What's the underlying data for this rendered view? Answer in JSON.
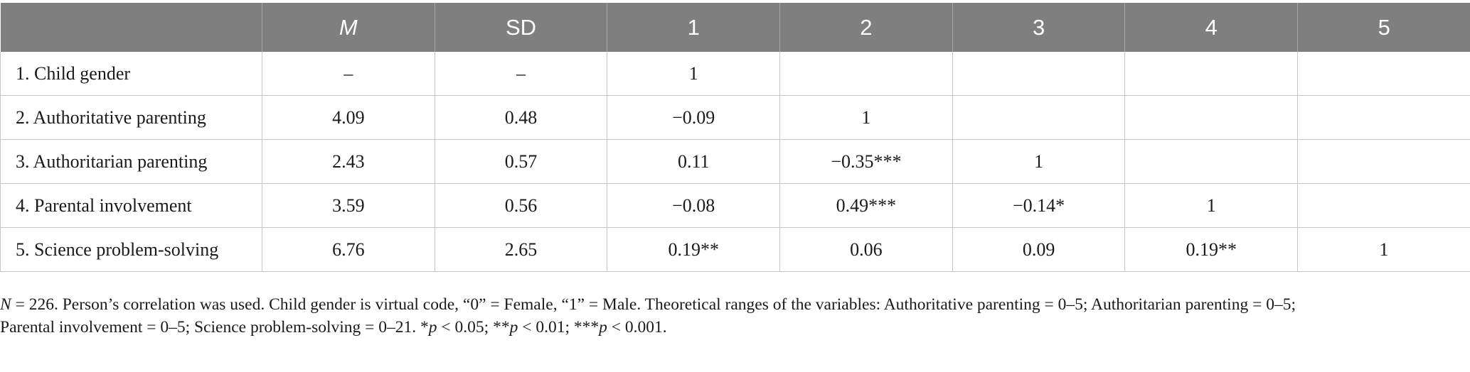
{
  "table": {
    "headers": [
      "",
      "M",
      "SD",
      "1",
      "2",
      "3",
      "4",
      "5"
    ],
    "rows": [
      [
        "1. Child gender",
        "–",
        "–",
        "1",
        "",
        "",
        "",
        ""
      ],
      [
        "2. Authoritative parenting",
        "4.09",
        "0.48",
        "−0.09",
        "1",
        "",
        "",
        ""
      ],
      [
        "3. Authoritarian parenting",
        "2.43",
        "0.57",
        "0.11",
        "−0.35***",
        "1",
        "",
        ""
      ],
      [
        "4. Parental involvement",
        "3.59",
        "0.56",
        "−0.08",
        "0.49***",
        "−0.14*",
        "1",
        ""
      ],
      [
        "5. Science problem-solving",
        "6.76",
        "2.65",
        "0.19**",
        "0.06",
        "0.09",
        "0.19**",
        "1"
      ]
    ]
  },
  "note": {
    "n_symbol": "N",
    "line1_rest": " = 226. Person’s correlation was used. Child gender is virtual code, “0” = Female, “1” = Male. Theoretical ranges of the variables: Authoritative parenting = 0–5; Authoritarian parenting = 0–5;",
    "line2_main": "Parental involvement = 0–5; Science problem-solving = 0–21. ",
    "p1_star": "*",
    "p1_rest": " < 0.05; ",
    "p2_star": "**",
    "p2_rest": " < 0.01; ",
    "p3_star": "***",
    "p3_rest": " < 0.001.",
    "p_symbol": "p"
  }
}
